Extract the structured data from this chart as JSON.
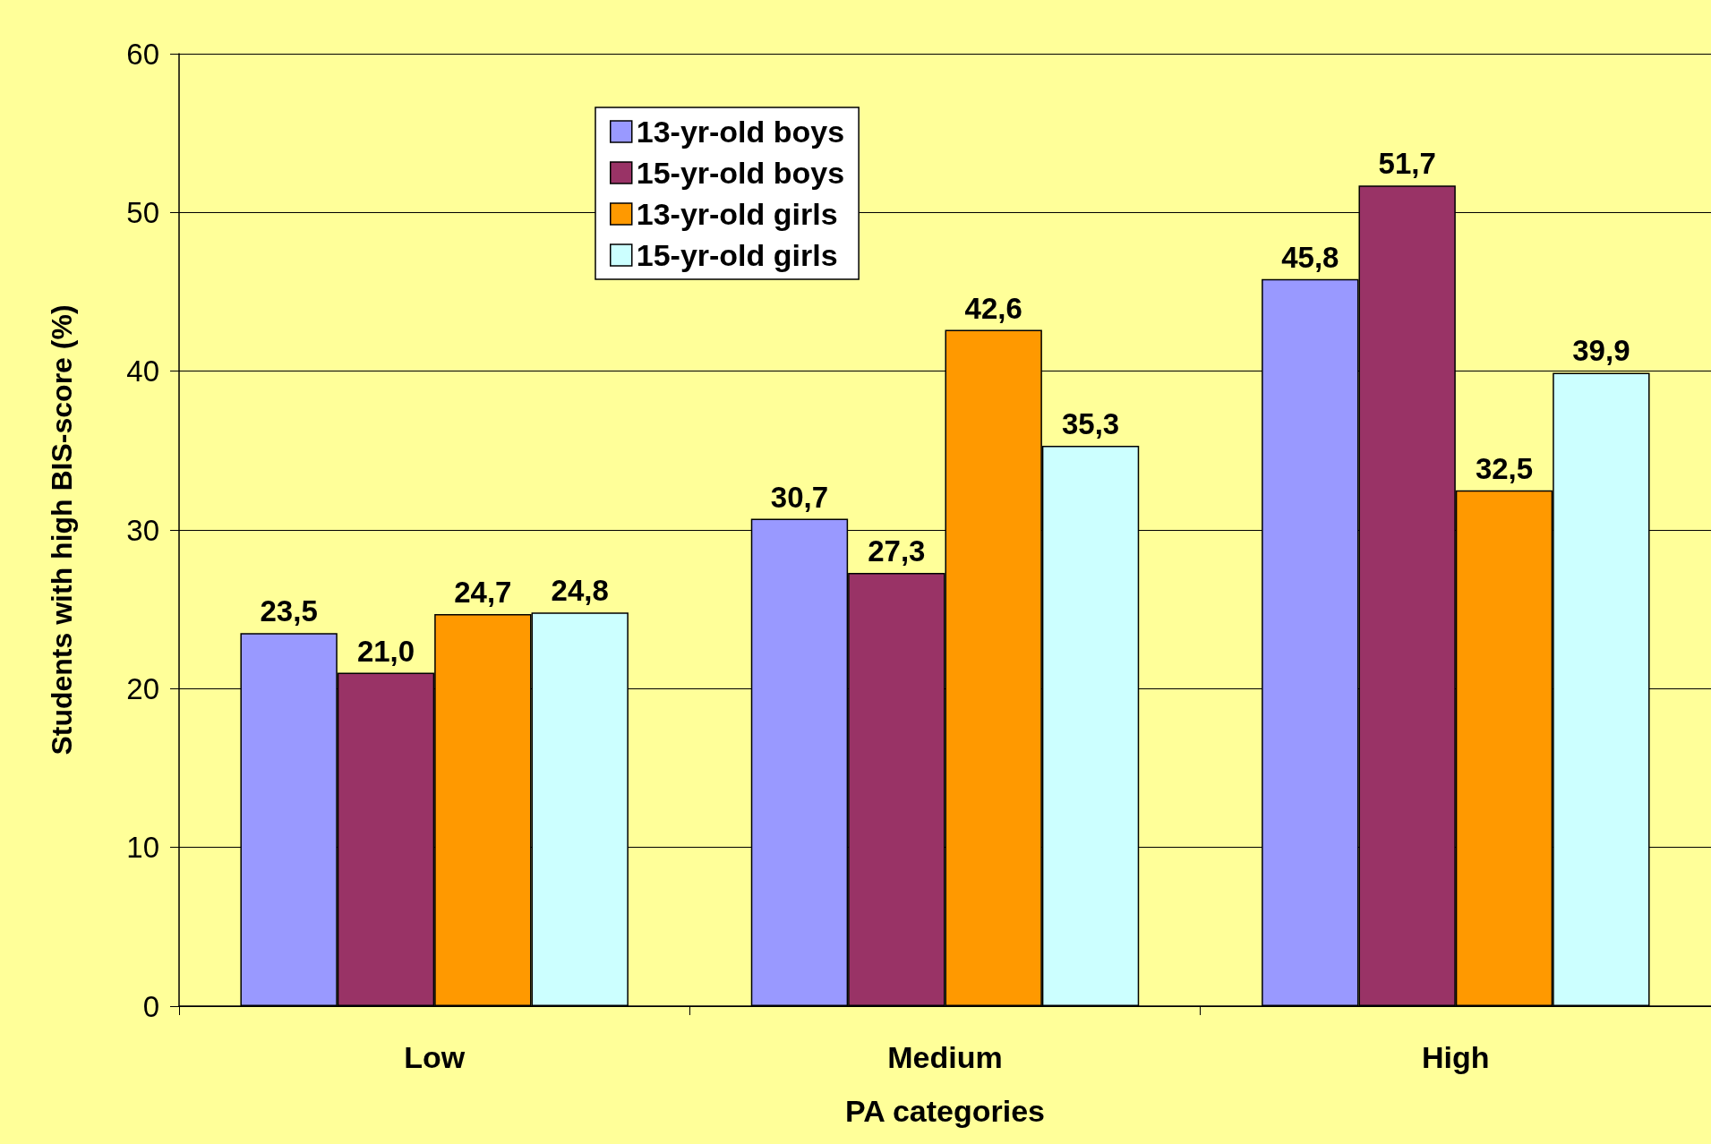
{
  "chart_data": {
    "type": "bar",
    "xlabel": "PA categories",
    "ylabel": "Students with high BIS-score (%)",
    "categories": [
      "Low",
      "Medium",
      "High"
    ],
    "series": [
      {
        "name": "13-yr-old boys",
        "color": "#9999ff",
        "values": [
          23.5,
          30.7,
          45.8
        ],
        "value_labels": [
          "23,5",
          "30,7",
          "45,8"
        ]
      },
      {
        "name": "15-yr-old boys",
        "color": "#993366",
        "values": [
          21.0,
          27.3,
          51.7
        ],
        "value_labels": [
          "21,0",
          "27,3",
          "51,7"
        ]
      },
      {
        "name": "13-yr-old girls",
        "color": "#ff9900",
        "values": [
          24.7,
          42.6,
          32.5
        ],
        "value_labels": [
          "24,7",
          "42,6",
          "32,5"
        ]
      },
      {
        "name": "15-yr-old girls",
        "color": "#ccffff",
        "values": [
          24.8,
          35.3,
          39.9
        ],
        "value_labels": [
          "24,8",
          "35,3",
          "39,9"
        ]
      }
    ],
    "ylim": [
      0,
      60
    ],
    "yticks": [
      0,
      10,
      20,
      30,
      40,
      50,
      60
    ],
    "grid": "y",
    "legend": "top left"
  }
}
